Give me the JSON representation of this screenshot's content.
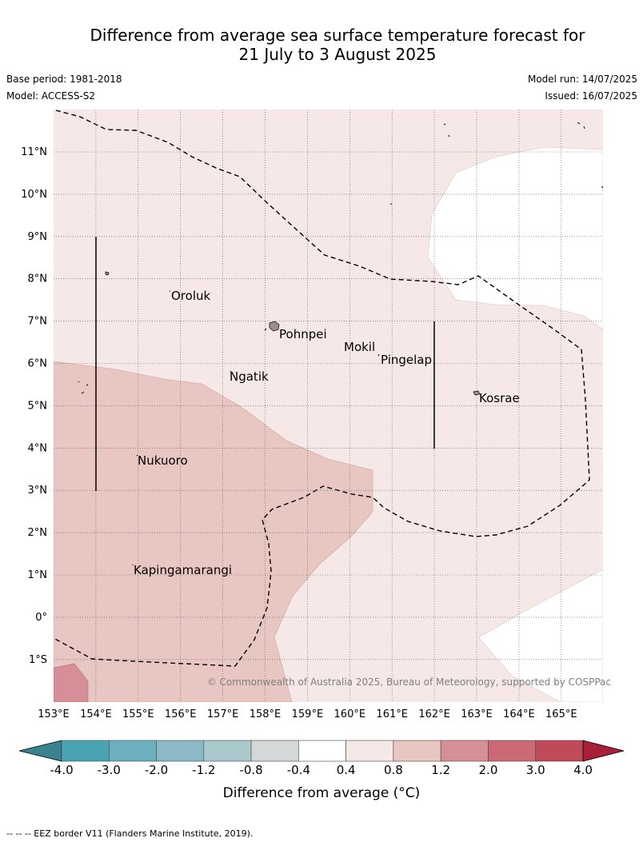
{
  "title": {
    "line1": "Difference from average sea surface temperature forecast for",
    "line2": "21 July to 3 August 2025"
  },
  "meta": {
    "base_period": "Base period: 1981-2018",
    "model": "Model: ACCESS-S2",
    "model_run": "Model run: 14/07/2025",
    "issued": "Issued: 16/07/2025"
  },
  "map": {
    "lon_labels": [
      "153°E",
      "154°E",
      "155°E",
      "156°E",
      "157°E",
      "158°E",
      "159°E",
      "160°E",
      "161°E",
      "162°E",
      "163°E",
      "164°E",
      "165°E"
    ],
    "lat_labels": [
      "11°N",
      "10°N",
      "9°N",
      "8°N",
      "7°N",
      "6°N",
      "5°N",
      "4°N",
      "3°N",
      "2°N",
      "1°N",
      "0°",
      "1°S"
    ],
    "places": [
      "Oroluk",
      "Pohnpei",
      "Mokil",
      "Pingelap",
      "Ngatik",
      "Kosrae",
      "Nukuoro",
      "Kapingamarangi"
    ],
    "copyright": "© Commonwealth of Australia 2025, Bureau of Meteorology, supported by COSPPac"
  },
  "colorbar": {
    "ticks": [
      "-4.0",
      "-3.0",
      "-2.0",
      "-1.2",
      "-0.8",
      "-0.4",
      "0.4",
      "0.8",
      "1.2",
      "2.0",
      "3.0",
      "4.0"
    ],
    "colors": [
      "#4aa3b3",
      "#6cb0bf",
      "#8bbac6",
      "#a9c9cd",
      "#d5d8d8",
      "#ffffff",
      "#f5e8e7",
      "#e8c6c2",
      "#d68f97",
      "#cb6a74",
      "#c04a59"
    ],
    "under_color": "#3a8290",
    "over_color": "#a91f3a",
    "label": "Difference from average (°C)"
  },
  "legend": {
    "eez": "--  --  -- EEZ border V11 (Flanders Marine Institute, 2019)."
  }
}
